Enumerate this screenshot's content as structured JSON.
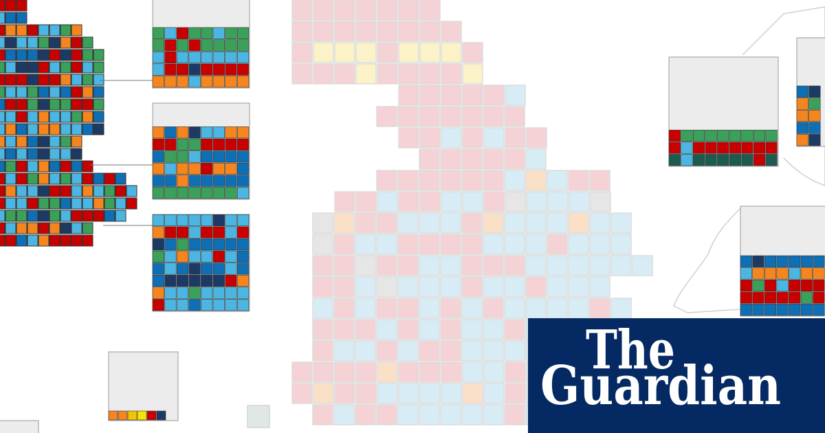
{
  "brand": {
    "line1": "The",
    "line2": "Guardian"
  }
}
